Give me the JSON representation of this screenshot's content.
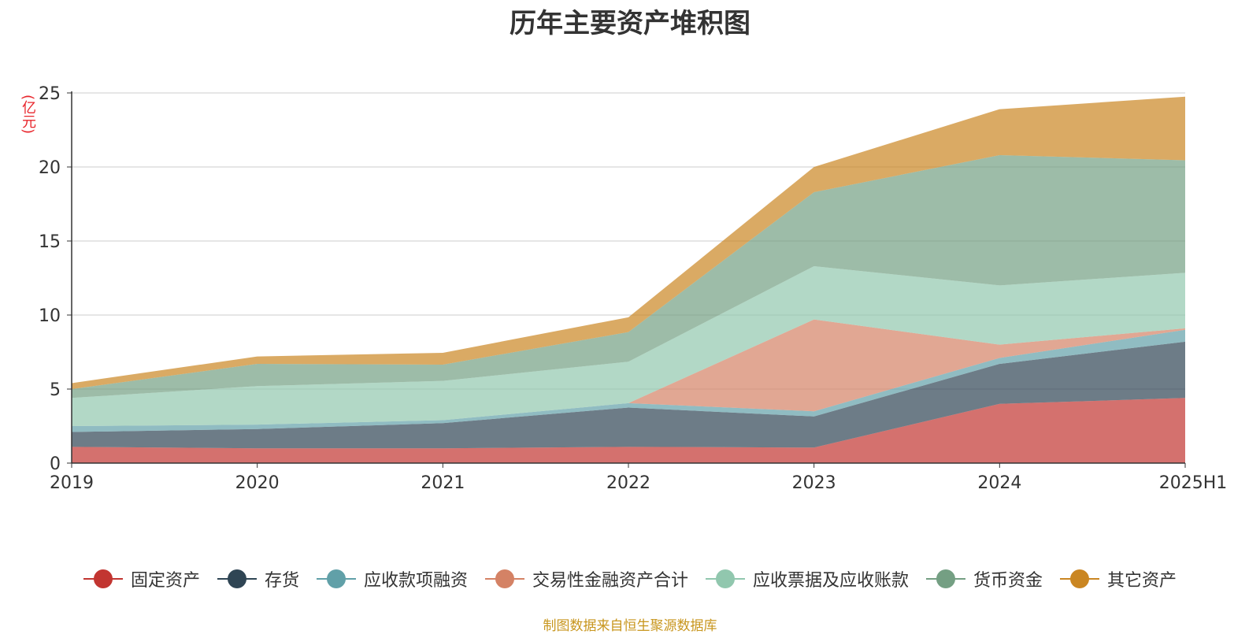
{
  "chart_data": {
    "type": "area",
    "stacked": true,
    "title": "历年主要资产堆积图",
    "unit_label": "(亿元)",
    "categories": [
      "2019",
      "2020",
      "2021",
      "2022",
      "2023",
      "2024",
      "2025H1"
    ],
    "ylim": [
      0,
      25
    ],
    "yticks": [
      "0",
      "5",
      "10",
      "15",
      "20",
      "25"
    ],
    "grid": true,
    "legend_position": "bottom",
    "series": [
      {
        "name": "固定资产",
        "color": "#c23531",
        "values": [
          1.1,
          1.0,
          1.0,
          1.1,
          1.05,
          4.0,
          4.4
        ]
      },
      {
        "name": "存货",
        "color": "#2f4554",
        "values": [
          1.0,
          1.3,
          1.7,
          2.65,
          2.1,
          2.7,
          3.8
        ]
      },
      {
        "name": "应收款项融资",
        "color": "#61a0a8",
        "values": [
          0.4,
          0.3,
          0.2,
          0.3,
          0.35,
          0.4,
          0.8
        ]
      },
      {
        "name": "交易性金融资产合计",
        "color": "#d48265",
        "values": [
          0,
          0,
          0,
          0,
          6.2,
          0.9,
          0.1
        ]
      },
      {
        "name": "应收票据及应收账款",
        "color": "#91c7ae",
        "values": [
          1.9,
          2.6,
          2.65,
          2.8,
          3.6,
          4.0,
          3.75
        ]
      },
      {
        "name": "货币资金",
        "color": "#749f83",
        "values": [
          0.6,
          1.5,
          1.1,
          2.0,
          5.0,
          8.8,
          7.6
        ]
      },
      {
        "name": "其它资产",
        "color": "#ca8622",
        "values": [
          0.4,
          0.5,
          0.8,
          1.0,
          1.7,
          3.1,
          4.3
        ]
      }
    ]
  },
  "source_note": "制图数据来自恒生聚源数据库"
}
